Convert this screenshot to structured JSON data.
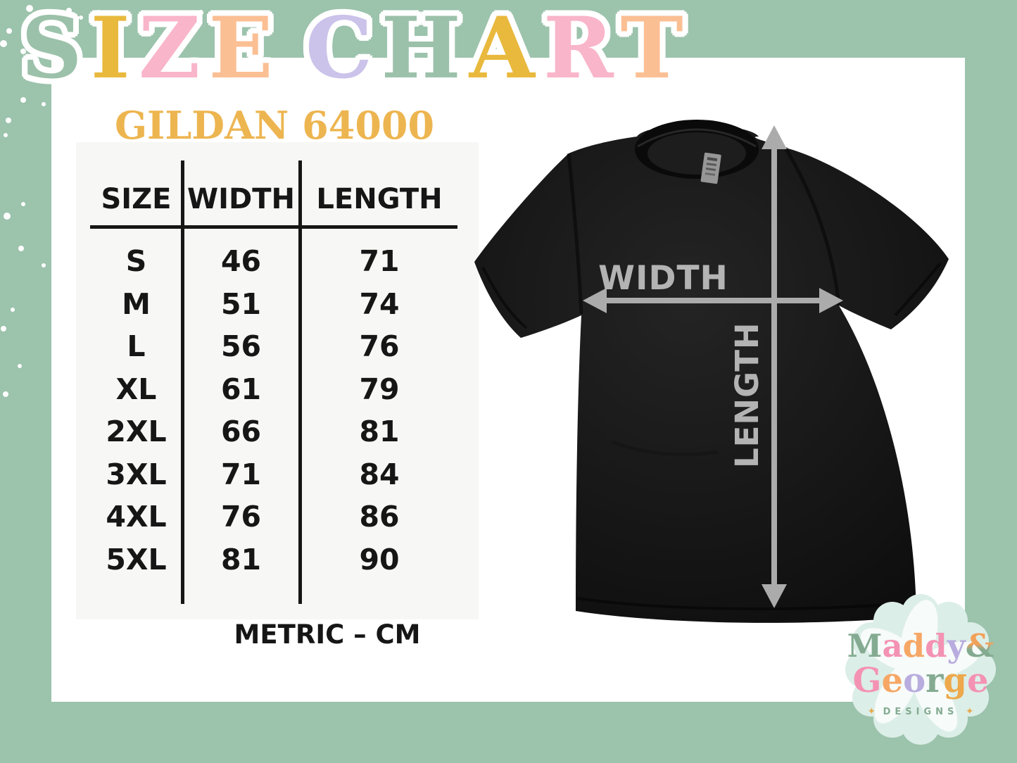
{
  "title": {
    "text": "SIZE CHART",
    "letters": [
      {
        "ch": "S",
        "color": "#9cc1aa"
      },
      {
        "ch": "I",
        "color": "#e9b93e"
      },
      {
        "ch": "Z",
        "color": "#f9b5ca"
      },
      {
        "ch": "E",
        "color": "#fbbf94"
      },
      {
        "ch": " ",
        "color": ""
      },
      {
        "ch": "C",
        "color": "#cbc3ea"
      },
      {
        "ch": "H",
        "color": "#9cc1aa"
      },
      {
        "ch": "A",
        "color": "#e9b93e"
      },
      {
        "ch": "R",
        "color": "#f9b5ca"
      },
      {
        "ch": "T",
        "color": "#fbbf94"
      }
    ]
  },
  "subtitle": "GILDAN 64000",
  "size_table": {
    "headers": [
      "SIZE",
      "WIDTH",
      "LENGTH"
    ],
    "rows": [
      [
        "S",
        "46",
        "71"
      ],
      [
        "M",
        "51",
        "74"
      ],
      [
        "L",
        "56",
        "76"
      ],
      [
        "XL",
        "61",
        "79"
      ],
      [
        "2XL",
        "66",
        "81"
      ],
      [
        "3XL",
        "71",
        "84"
      ],
      [
        "4XL",
        "76",
        "86"
      ],
      [
        "5XL",
        "81",
        "90"
      ]
    ],
    "unit_note": "METRIC – CM"
  },
  "shirt": {
    "width_label": "WIDTH",
    "length_label": "LENGTH"
  },
  "logo": {
    "line1": [
      {
        "ch": "M",
        "color": "#84ab91"
      },
      {
        "ch": "a",
        "color": "#f492b3"
      },
      {
        "ch": "d",
        "color": "#f6a765"
      },
      {
        "ch": "d",
        "color": "#f492b3"
      },
      {
        "ch": "y",
        "color": "#b9addf"
      },
      {
        "ch": "&",
        "color": "#84aa90",
        "grad": true
      }
    ],
    "line2": [
      {
        "ch": "G",
        "color": "#f492b3"
      },
      {
        "ch": "e",
        "color": "#f6a765"
      },
      {
        "ch": "o",
        "color": "#b9addf"
      },
      {
        "ch": "r",
        "color": "#84ab91"
      },
      {
        "ch": "g",
        "color": "#eda94b"
      },
      {
        "ch": "e",
        "color": "#f492b3"
      }
    ],
    "tagline": "DESIGNS",
    "sparkle": "✦"
  },
  "colors": {
    "background": "#9cc3ac",
    "card": "#ffffff",
    "table_panel": "#f7f7f5",
    "table_ink": "#161616",
    "gold": "#edb550",
    "arrow_gray": "#ababab",
    "label_gray": "#b3b3b3",
    "shirt_black": "#151515",
    "badge_mint": "#dceee8"
  },
  "chart_data": {
    "type": "table",
    "title": "SIZE CHART",
    "subtitle": "GILDAN 64000",
    "columns": [
      "SIZE",
      "WIDTH",
      "LENGTH"
    ],
    "rows": [
      [
        "S",
        46,
        71
      ],
      [
        "M",
        51,
        74
      ],
      [
        "L",
        56,
        76
      ],
      [
        "XL",
        61,
        79
      ],
      [
        "2XL",
        66,
        81
      ],
      [
        "3XL",
        71,
        84
      ],
      [
        "4XL",
        76,
        86
      ],
      [
        "5XL",
        81,
        90
      ]
    ],
    "units": "cm",
    "unit_note": "METRIC – CM"
  }
}
